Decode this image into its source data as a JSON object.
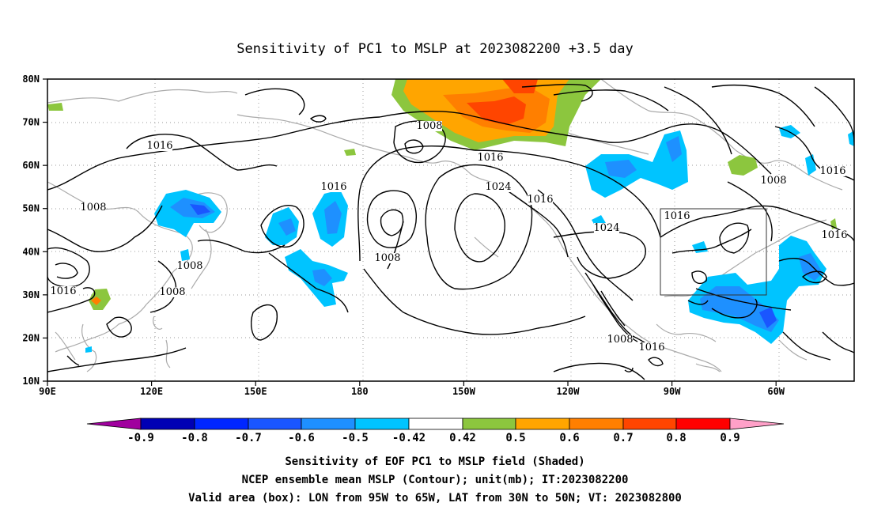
{
  "title": "Sensitivity of PC1 to MSLP at 2023082200 +3.5 day",
  "axes": {
    "lat_labels": [
      "80N",
      "70N",
      "60N",
      "50N",
      "40N",
      "30N",
      "20N",
      "10N"
    ],
    "lon_labels": [
      "90E",
      "120E",
      "150E",
      "180",
      "150W",
      "120W",
      "90W",
      "60W"
    ],
    "grid": "dotted",
    "lon_range": [
      "90E",
      "40W"
    ],
    "lat_range": [
      "10N",
      "80N"
    ]
  },
  "contour_labels": [
    {
      "text": "1016"
    },
    {
      "text": "1008"
    },
    {
      "text": "1016"
    },
    {
      "text": "1008"
    },
    {
      "text": "1008"
    },
    {
      "text": "1008"
    },
    {
      "text": "1008"
    },
    {
      "text": "1016"
    },
    {
      "text": "1024"
    },
    {
      "text": "1016"
    },
    {
      "text": "1024"
    },
    {
      "text": "1016"
    },
    {
      "text": "1016"
    },
    {
      "text": "1008"
    },
    {
      "text": "1016"
    },
    {
      "text": "1008"
    },
    {
      "text": "1016"
    },
    {
      "text": "1016"
    }
  ],
  "shading": {
    "colors": {
      "neg_0_9": "#a0009e",
      "neg_0_8": "#0000b4",
      "neg_0_7": "#0026ff",
      "neg_0_6": "#1a56ff",
      "neg_0_5": "#1e90ff",
      "neg_0_42": "#00c4ff",
      "neutral": "#ffffff",
      "pos_0_42": "#8cc63e",
      "pos_0_5": "#ffa500",
      "pos_0_6": "#ff7f00",
      "pos_0_7": "#ff4500",
      "pos_0_8": "#ff0000",
      "pos_0_9": "#ffa0c8"
    }
  },
  "colorbar": {
    "labels": [
      "-0.9",
      "-0.8",
      "-0.7",
      "-0.6",
      "-0.5",
      "-0.42",
      "0.42",
      "0.5",
      "0.6",
      "0.7",
      "0.8",
      "0.9"
    ]
  },
  "valid_box": {
    "lon_west": "95W",
    "lon_east": "65W",
    "lat_south": "30N",
    "lat_north": "50N"
  },
  "footer": {
    "line1": "Sensitivity of EOF PC1 to MSLP field (Shaded)",
    "line2": "NCEP ensemble mean MSLP (Contour); unit(mb); IT:2023082200",
    "line3": "Valid area (box): LON from 95W to 65W, LAT from 30N to 50N; VT: 2023082800"
  }
}
